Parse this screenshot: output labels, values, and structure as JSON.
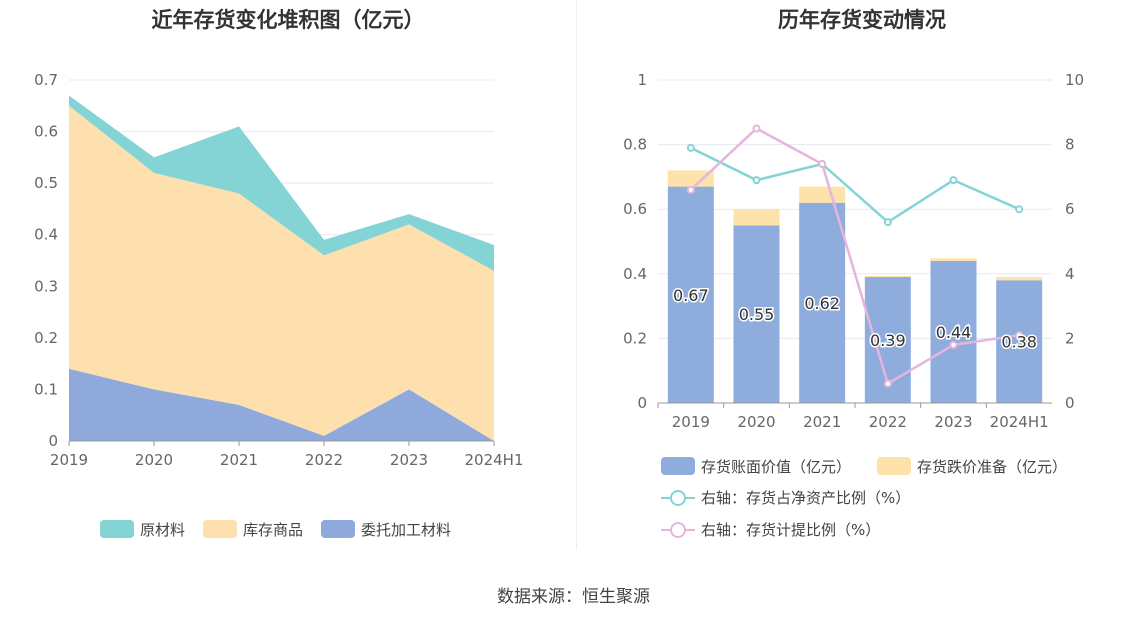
{
  "source_text": "数据来源：恒生聚源",
  "chart_data": [
    {
      "type": "area",
      "stacked": true,
      "title": "近年存货变化堆积图（亿元）",
      "categories": [
        "2019",
        "2020",
        "2021",
        "2022",
        "2023",
        "2024H1"
      ],
      "y_ticks": [
        "0",
        "0.1",
        "0.2",
        "0.3",
        "0.4",
        "0.5",
        "0.6",
        "0.7"
      ],
      "ylim": [
        0,
        0.7
      ],
      "grid": true,
      "legend_position": "bottom",
      "series": [
        {
          "name": "委托加工材料",
          "color": "#8fa9dd",
          "values": [
            0.14,
            0.1,
            0.07,
            0.01,
            0.1,
            0.0
          ]
        },
        {
          "name": "库存商品",
          "color": "#fde0ad",
          "values": [
            0.51,
            0.42,
            0.41,
            0.35,
            0.32,
            0.33
          ]
        },
        {
          "name": "原材料",
          "color": "#84d4d6",
          "values": [
            0.02,
            0.03,
            0.13,
            0.03,
            0.02,
            0.05
          ]
        }
      ]
    },
    {
      "type": "bar",
      "stacked": true,
      "title": "历年存货变动情况",
      "categories": [
        "2019",
        "2020",
        "2021",
        "2022",
        "2023",
        "2024H1"
      ],
      "y_left_ticks": [
        "0",
        "0.2",
        "0.4",
        "0.6",
        "0.8",
        "1"
      ],
      "y_right_ticks": [
        "0",
        "2",
        "4",
        "6",
        "8",
        "10"
      ],
      "ylim_left": [
        0,
        1
      ],
      "ylim_right": [
        0,
        10
      ],
      "grid": true,
      "legend_position": "bottom",
      "bars": [
        {
          "name": "存货账面价值（亿元）",
          "color": "#8eaddc",
          "values": [
            0.67,
            0.55,
            0.62,
            0.39,
            0.44,
            0.38
          ],
          "labels": [
            "0.67",
            "0.55",
            "0.62",
            "0.39",
            "0.44",
            "0.38"
          ]
        },
        {
          "name": "存货跌价准备（亿元）",
          "color": "#fde2aa",
          "values": [
            0.05,
            0.05,
            0.05,
            0.003,
            0.008,
            0.01
          ]
        }
      ],
      "lines": [
        {
          "name": "右轴：存货占净资产比例（%）",
          "color": "#84d4d6",
          "values": [
            7.9,
            6.9,
            7.4,
            5.6,
            6.9,
            6.0
          ]
        },
        {
          "name": "右轴：存货计提比例（%）",
          "color": "#e6b5de",
          "values": [
            6.6,
            8.5,
            7.4,
            0.6,
            1.8,
            2.1
          ]
        }
      ]
    }
  ]
}
